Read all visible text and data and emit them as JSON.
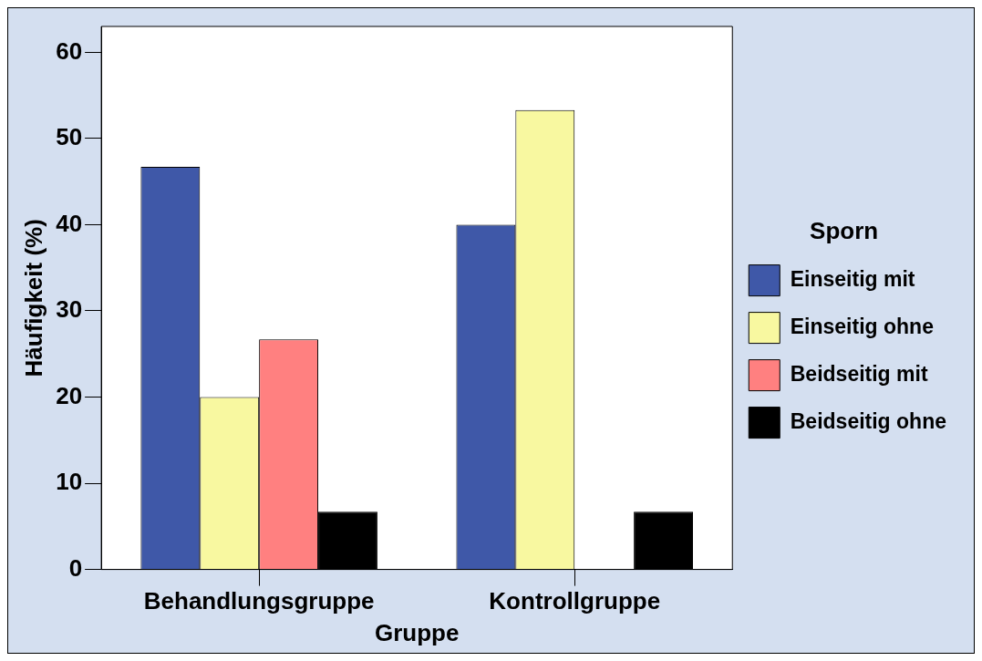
{
  "chart_data": {
    "type": "bar",
    "xlabel": "Gruppe",
    "ylabel": "Häufigkeit (%)",
    "legend_title": "Sporn",
    "categories": [
      "Behandlungsgruppe",
      "Kontrollgruppe"
    ],
    "series": [
      {
        "name": "Einseitig mit",
        "color": "#3f58a8",
        "values": [
          46.7,
          40
        ]
      },
      {
        "name": "Einseitig ohne",
        "color": "#f8f8a0",
        "values": [
          20,
          53.3
        ]
      },
      {
        "name": "Beidseitig mit",
        "color": "#ff8080",
        "values": [
          26.7,
          0
        ]
      },
      {
        "name": "Beidseitig ohne",
        "color": "#000000",
        "values": [
          6.7,
          6.7
        ]
      }
    ],
    "ylim": [
      0,
      63
    ],
    "yticks": [
      0,
      10,
      20,
      30,
      40,
      50,
      60
    ],
    "grid": false,
    "legend": "right"
  }
}
